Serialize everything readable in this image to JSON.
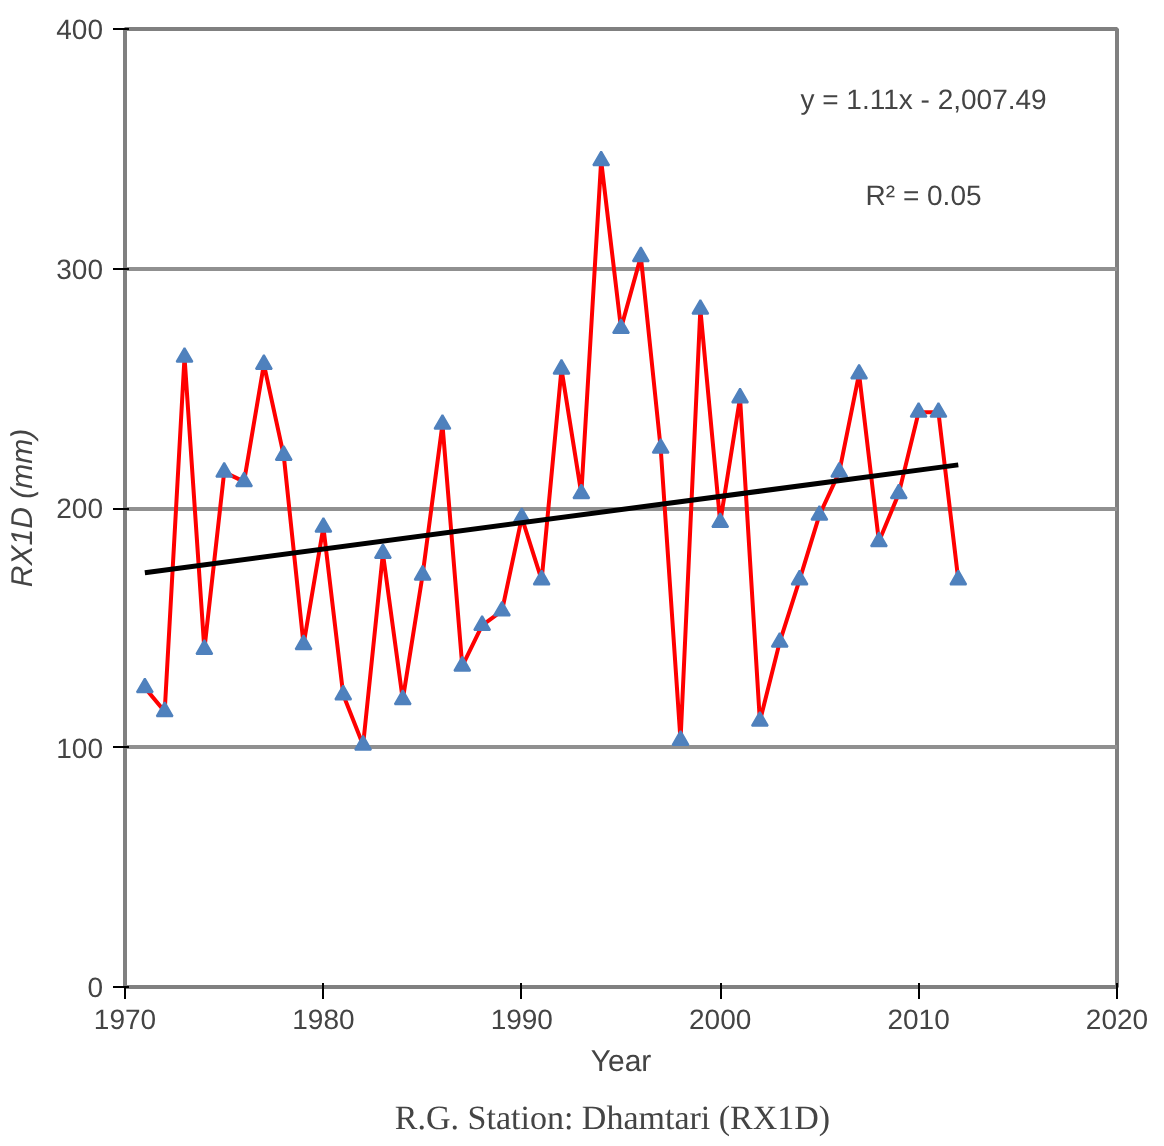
{
  "chart_data": {
    "type": "line",
    "xlabel": "Year",
    "ylabel": "RX1D (mm)",
    "x": [
      1971,
      1972,
      1973,
      1974,
      1975,
      1976,
      1977,
      1978,
      1979,
      1980,
      1981,
      1982,
      1983,
      1984,
      1985,
      1986,
      1987,
      1988,
      1989,
      1990,
      1991,
      1992,
      1993,
      1994,
      1995,
      1996,
      1997,
      1998,
      1999,
      2000,
      2001,
      2002,
      2003,
      2004,
      2005,
      2006,
      2007,
      2008,
      2009,
      2010,
      2011,
      2012
    ],
    "series": [
      {
        "color": "#ff0000",
        "marker": "none",
        "values": [
          125,
          115,
          263,
          141,
          215,
          211,
          260,
          222,
          143,
          192,
          122,
          101,
          181,
          120,
          172,
          235,
          134,
          151,
          157,
          196,
          170,
          258,
          206,
          345,
          275,
          305,
          225,
          103,
          283,
          194,
          246,
          111,
          144,
          170,
          197,
          215,
          256,
          186,
          206,
          240,
          240,
          170
        ]
      },
      {
        "type": "scatter",
        "color": "#4f81bd",
        "marker": "triangle",
        "values": [
          125,
          115,
          263,
          141,
          215,
          211,
          260,
          222,
          143,
          192,
          122,
          101,
          181,
          120,
          172,
          235,
          134,
          151,
          157,
          196,
          170,
          258,
          206,
          345,
          275,
          305,
          225,
          103,
          283,
          194,
          246,
          111,
          144,
          170,
          197,
          215,
          256,
          186,
          206,
          240,
          240,
          170
        ]
      },
      {
        "type": "line",
        "color": "#000000",
        "marker": "none",
        "x": [
          1971,
          2012
        ],
        "values": [
          173,
          218
        ]
      }
    ],
    "xlim": [
      1970,
      2020
    ],
    "ylim": [
      0,
      400
    ],
    "xticks": [
      1970,
      1980,
      1990,
      2000,
      2010,
      2020
    ],
    "yticks": [
      0,
      100,
      200,
      300,
      400
    ],
    "grid": "y",
    "annotations": [
      "y = 1.11x - 2,007.49",
      "R² = 0.05",
      "R.G. Station: Dhamtari   (RX1D)"
    ]
  }
}
